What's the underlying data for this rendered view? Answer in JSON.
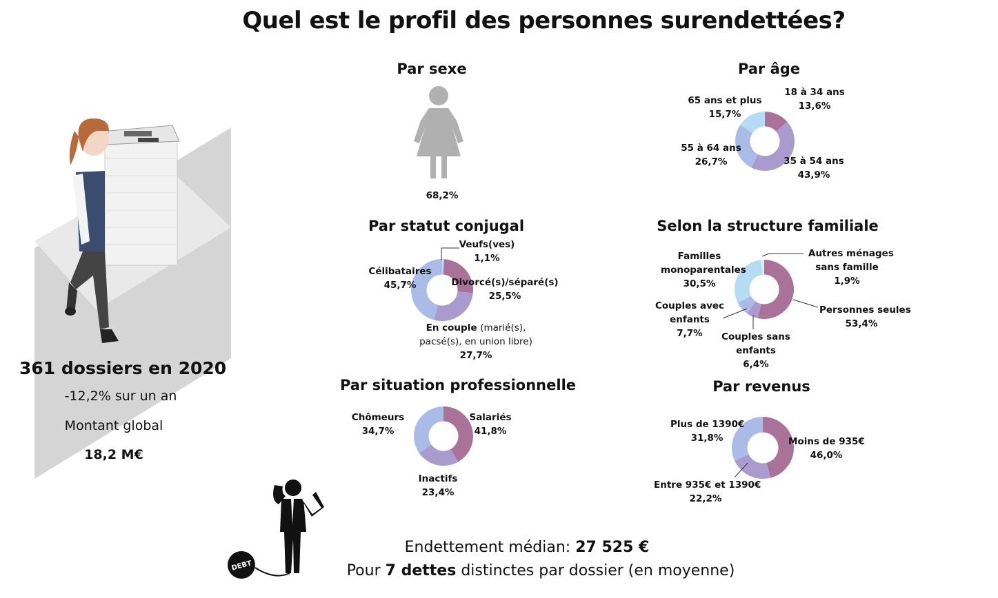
{
  "title": "Quel est le profil des personnes surendettées?",
  "left_panel": {
    "dossiers": "361 dossiers en 2020",
    "variation": "-12,2% sur un an",
    "montant_label": "Montant global",
    "montant_value": "18,2 M€"
  },
  "bottom": {
    "median_label": "Endettement médian: ",
    "median_value": "27 525 €",
    "dettes_prefix": "Pour ",
    "dettes_value": "7 dettes",
    "dettes_suffix": " distinctes par dossier (en moyenne)",
    "debt_ball_text": "DEBT"
  },
  "colors": {
    "purple": "#a97399",
    "lavender": "#aa9bce",
    "blue": "#a9bbe6",
    "light_blue": "#b4dcf4",
    "grey_figure": "#b0b0b0"
  },
  "chart_data": [
    {
      "id": "sexe",
      "type": "pictogram",
      "title": "Par sexe",
      "categories": [
        "Femmes"
      ],
      "values": [
        68.2
      ],
      "value_label": "68,2%"
    },
    {
      "id": "age",
      "type": "pie",
      "title": "Par âge",
      "categories": [
        "18 à 34 ans",
        "35 à 54 ans",
        "55 à 64 ans",
        "65 ans et plus"
      ],
      "values": [
        13.6,
        43.9,
        26.7,
        15.7
      ],
      "value_labels": [
        "13,6%",
        "43,9%",
        "26,7%",
        "15,7%"
      ],
      "colors": [
        "#a97399",
        "#aa9bce",
        "#a9bbe6",
        "#b4dcf4"
      ]
    },
    {
      "id": "conjugal",
      "type": "pie",
      "title": "Par statut conjugal",
      "categories": [
        "Veufs(ves)",
        "Divorcé(s)/séparé(s)",
        "En couple",
        "Célibataires"
      ],
      "category_notes": [
        "",
        "",
        "(marié(s), pacsé(s), en union libre)",
        ""
      ],
      "values": [
        1.1,
        25.5,
        27.7,
        45.7
      ],
      "value_labels": [
        "1,1%",
        "25,5%",
        "27,7%",
        "45,7%"
      ],
      "colors": [
        "#b4dcf4",
        "#a97399",
        "#aa9bce",
        "#a9bbe6"
      ]
    },
    {
      "id": "famille",
      "type": "pie",
      "title": "Selon la structure familiale",
      "categories": [
        "Personnes seules",
        "Couples sans enfants",
        "Couples avec enfants",
        "Familles monoparentales",
        "Autres ménages sans famille"
      ],
      "values": [
        53.4,
        6.4,
        7.7,
        30.5,
        1.9
      ],
      "value_labels": [
        "53,4%",
        "6,4%",
        "7,7%",
        "30,5%",
        "1,9%"
      ],
      "colors": [
        "#a97399",
        "#aa9bce",
        "#a9bbe6",
        "#b4dcf4",
        "#d6ecf8"
      ]
    },
    {
      "id": "pro",
      "type": "pie",
      "title": "Par situation professionnelle",
      "categories": [
        "Salariés",
        "Inactifs",
        "Chômeurs"
      ],
      "values": [
        41.8,
        23.4,
        34.7
      ],
      "value_labels": [
        "41,8%",
        "23,4%",
        "34,7%"
      ],
      "colors": [
        "#a97399",
        "#aa9bce",
        "#a9bbe6"
      ]
    },
    {
      "id": "revenus",
      "type": "pie",
      "title": "Par revenus",
      "categories": [
        "Moins de 935€",
        "Entre 935€ et 1390€",
        "Plus de 1390€"
      ],
      "values": [
        46.0,
        22.2,
        31.8
      ],
      "value_labels": [
        "46,0%",
        "22,2%",
        "31,8%"
      ],
      "colors": [
        "#a97399",
        "#aa9bce",
        "#a9bbe6"
      ]
    }
  ]
}
